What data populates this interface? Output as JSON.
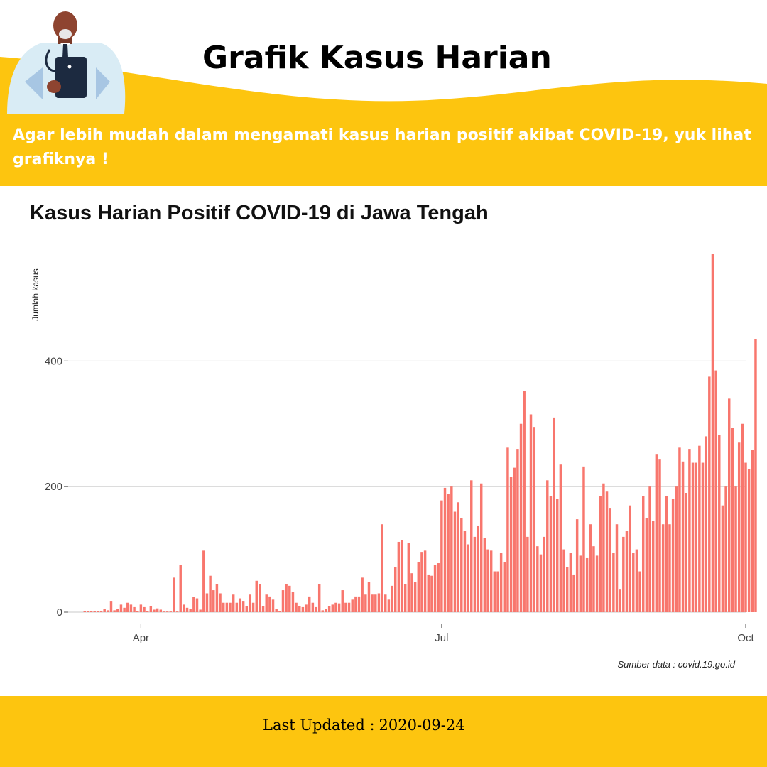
{
  "header": {
    "title": "Grafik Kasus Harian",
    "intro": "Agar lebih mudah dalam mengamati kasus harian positif akibat COVID-19, yuk lihat grafiknya !",
    "banner_color": "#fdc50f"
  },
  "illustration": {
    "icon": "doctor-with-clipboard-icon"
  },
  "footer": {
    "last_updated_label": "Last Updated :",
    "last_updated_value": "2020-09-24"
  },
  "chart_data": {
    "type": "bar",
    "title": "Kasus Harian Positif COVID-19 di Jawa Tengah",
    "ylabel": "Jumlah kasus",
    "xlabel": "",
    "source": "Sumber data : covid.19.go.id",
    "bar_color": "#f8766d",
    "grid": true,
    "ylim": [
      0,
      570
    ],
    "yticks": [
      0,
      200,
      400
    ],
    "xlim": [
      "2020-03-10",
      "2020-10-01"
    ],
    "xticks": [
      {
        "label": "Apr",
        "date": "2020-04-01"
      },
      {
        "label": "Jul",
        "date": "2020-07-01"
      },
      {
        "label": "Oct",
        "date": "2020-10-01"
      }
    ],
    "start_date": "2020-03-15",
    "values": [
      2,
      2,
      2,
      2,
      2,
      2,
      5,
      3,
      18,
      3,
      5,
      12,
      7,
      15,
      12,
      8,
      2,
      12,
      8,
      2,
      10,
      4,
      6,
      4,
      1,
      1,
      1,
      55,
      1,
      75,
      12,
      7,
      5,
      24,
      22,
      4,
      98,
      30,
      58,
      35,
      45,
      30,
      15,
      15,
      15,
      28,
      15,
      22,
      18,
      10,
      28,
      15,
      50,
      45,
      10,
      28,
      25,
      20,
      5,
      2,
      35,
      45,
      42,
      32,
      15,
      10,
      8,
      12,
      25,
      15,
      8,
      45,
      3,
      5,
      10,
      12,
      15,
      14,
      35,
      15,
      15,
      20,
      25,
      25,
      55,
      28,
      48,
      28,
      28,
      30,
      140,
      28,
      20,
      42,
      72,
      112,
      115,
      45,
      110,
      62,
      48,
      80,
      96,
      98,
      60,
      58,
      75,
      78,
      178,
      198,
      188,
      200,
      160,
      175,
      150,
      130,
      108,
      210,
      120,
      138,
      205,
      118,
      100,
      98,
      65,
      65,
      95,
      80,
      262,
      215,
      230,
      260,
      300,
      352,
      120,
      315,
      295,
      105,
      92,
      120,
      210,
      185,
      310,
      180,
      235,
      100,
      72,
      95,
      60,
      148,
      90,
      232,
      86,
      140,
      105,
      90,
      185,
      205,
      192,
      165,
      95,
      140,
      36,
      120,
      130,
      170,
      95,
      100,
      65,
      185,
      150,
      200,
      145,
      252,
      243,
      140,
      185,
      140,
      180,
      200,
      262,
      240,
      190,
      260,
      238,
      238,
      265,
      238,
      280,
      375,
      570,
      385,
      282,
      170,
      200,
      340,
      293,
      200,
      270,
      300,
      238,
      228,
      258,
      435
    ]
  }
}
